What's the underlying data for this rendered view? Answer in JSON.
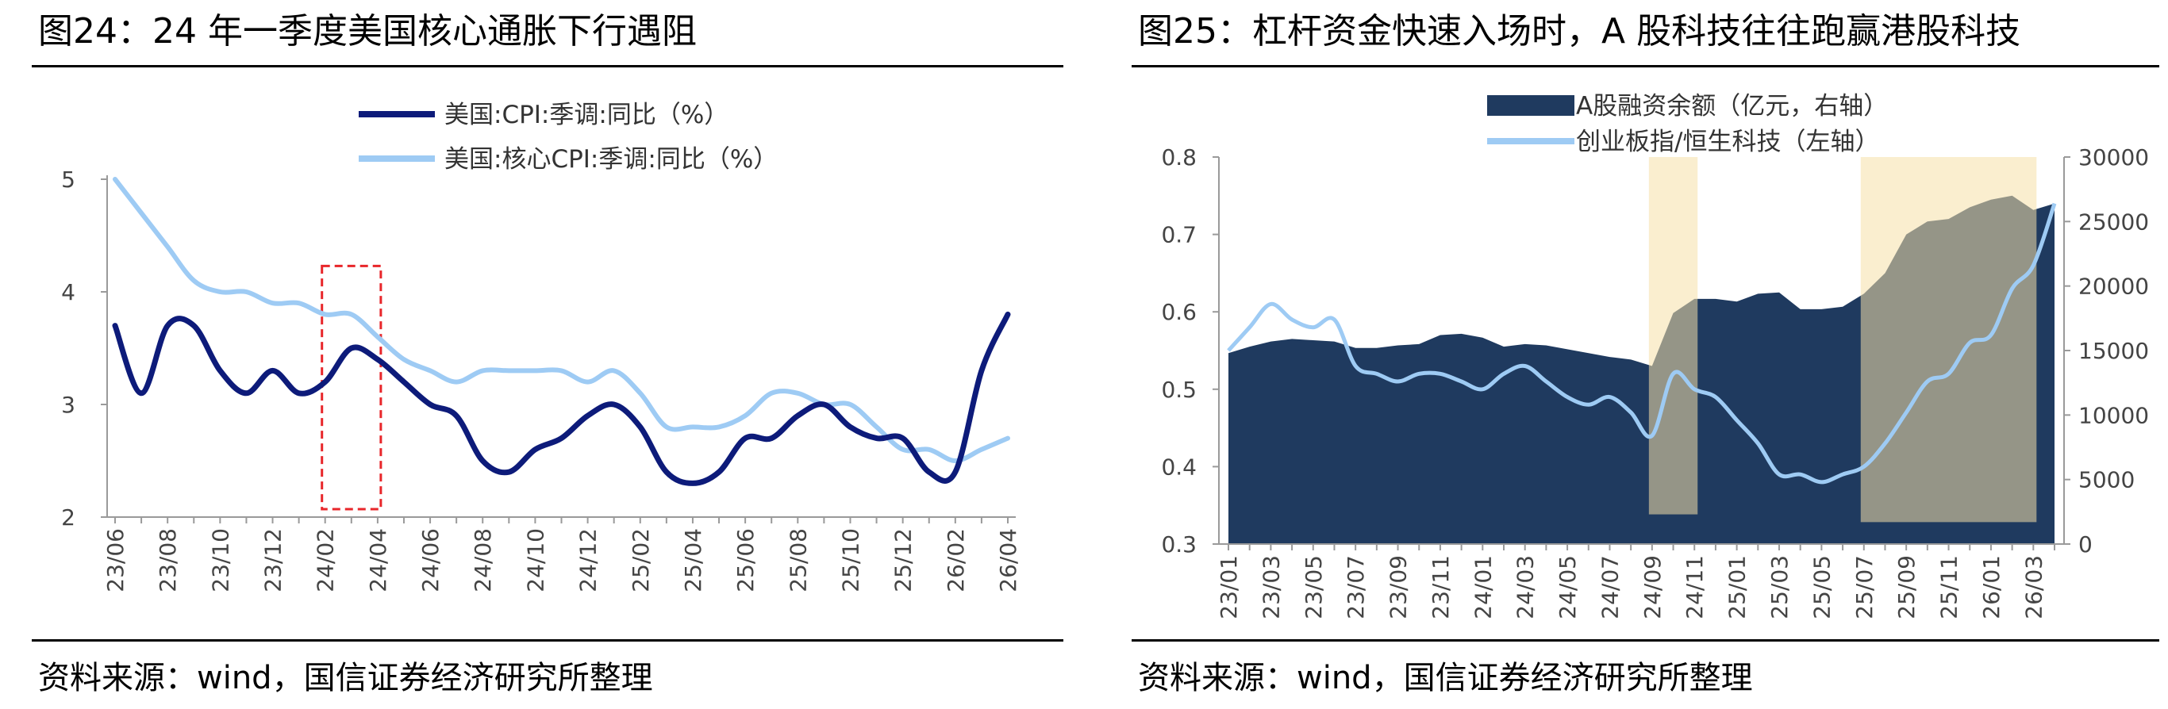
{
  "left": {
    "title": "图24：24 年一季度美国核心通胀下行遇阻",
    "source": "资料来源：wind，国信证券经济研究所整理",
    "chart_data": {
      "type": "line",
      "x": [
        "23/06",
        "23/07",
        "23/08",
        "23/09",
        "23/10",
        "23/11",
        "23/12",
        "24/01",
        "24/02",
        "24/03",
        "24/04",
        "24/05",
        "24/06",
        "24/07",
        "24/08",
        "24/09",
        "24/10",
        "24/11",
        "24/12",
        "25/01",
        "25/02",
        "25/03",
        "25/04",
        "25/05",
        "25/06",
        "25/07",
        "25/08",
        "25/09",
        "25/10",
        "25/11",
        "25/12",
        "26/01",
        "26/02",
        "26/03",
        "26/04"
      ],
      "x_ticks": [
        "23/06",
        "23/08",
        "23/10",
        "23/12",
        "24/02",
        "24/04",
        "24/06",
        "24/08",
        "24/10",
        "24/12",
        "25/02",
        "25/04",
        "25/06",
        "25/08",
        "25/10",
        "25/12",
        "26/02",
        "26/04"
      ],
      "y_ticks": [
        "2",
        "3",
        "4",
        "5"
      ],
      "ylim": [
        2,
        5
      ],
      "series": [
        {
          "name": "美国:CPI:季调:同比（%）",
          "color": "#0d1b7a",
          "values": [
            3.7,
            3.1,
            3.7,
            3.7,
            3.3,
            3.1,
            3.3,
            3.1,
            3.2,
            3.5,
            3.4,
            3.2,
            3.0,
            2.9,
            2.5,
            2.4,
            2.6,
            2.7,
            2.9,
            3.0,
            2.8,
            2.4,
            2.3,
            2.4,
            2.7,
            2.7,
            2.9,
            3.0,
            2.8,
            2.7,
            2.7,
            2.4,
            2.4,
            3.3,
            3.8
          ]
        },
        {
          "name": "美国:核心CPI:季调:同比（%）",
          "color": "#9ecbf4",
          "values": [
            5.0,
            4.7,
            4.4,
            4.1,
            4.0,
            4.0,
            3.9,
            3.9,
            3.8,
            3.8,
            3.6,
            3.4,
            3.3,
            3.2,
            3.3,
            3.3,
            3.3,
            3.3,
            3.2,
            3.3,
            3.1,
            2.8,
            2.8,
            2.8,
            2.9,
            3.1,
            3.1,
            3.0,
            3.0,
            2.8,
            2.6,
            2.6,
            2.5,
            2.6,
            2.7
          ]
        }
      ],
      "annotation": {
        "type": "dashed-box",
        "color": "#e8262a",
        "x_from": "24/02",
        "x_to": "24/04"
      }
    }
  },
  "right": {
    "title": "图25：杠杆资金快速入场时，A 股科技往往跑赢港股科技",
    "source": "资料来源：wind，国信证券经济研究所整理",
    "chart_data": {
      "type": "area",
      "x": [
        "23/01",
        "23/02",
        "23/03",
        "23/04",
        "23/05",
        "23/06",
        "23/07",
        "23/08",
        "23/09",
        "23/10",
        "23/11",
        "23/12",
        "24/01",
        "24/02",
        "24/03",
        "24/04",
        "24/05",
        "24/06",
        "24/07",
        "24/08",
        "24/09",
        "24/10",
        "24/11",
        "24/12",
        "25/01",
        "25/02",
        "25/03",
        "25/04",
        "25/05",
        "25/06",
        "25/07",
        "25/08",
        "25/09",
        "25/10",
        "25/11",
        "25/12",
        "26/01",
        "26/02",
        "26/03",
        "26/04"
      ],
      "x_ticks": [
        "23/01",
        "23/03",
        "23/05",
        "23/07",
        "23/09",
        "23/11",
        "24/01",
        "24/03",
        "24/05",
        "24/07",
        "24/09",
        "24/11",
        "25/01",
        "25/03",
        "25/05",
        "25/07",
        "25/09",
        "25/11",
        "26/01",
        "26/03"
      ],
      "left_axis": {
        "ticks": [
          "0.3",
          "0.4",
          "0.5",
          "0.6",
          "0.7",
          "0.8"
        ],
        "range": [
          0.3,
          0.8
        ]
      },
      "right_axis": {
        "ticks": [
          "0",
          "5000",
          "10000",
          "15000",
          "20000",
          "25000",
          "30000"
        ],
        "range": [
          0,
          30000
        ]
      },
      "series": [
        {
          "name": "A股融资余额（亿元，右轴）",
          "axis": "right",
          "color": "#1f3a5f",
          "values": [
            14800,
            15300,
            15700,
            15900,
            15800,
            15700,
            15200,
            15200,
            15400,
            15500,
            16200,
            16300,
            16000,
            15300,
            15500,
            15400,
            15100,
            14800,
            14500,
            14300,
            13800,
            17900,
            19000,
            19000,
            18800,
            19400,
            19500,
            18200,
            18200,
            18400,
            19400,
            21000,
            24000,
            25000,
            25200,
            26100,
            26700,
            27000,
            25900,
            26400
          ]
        },
        {
          "name": "创业板指/恒生科技（左轴）",
          "axis": "left",
          "color": "#9ecbf4",
          "values": [
            0.55,
            0.58,
            0.61,
            0.59,
            0.58,
            0.59,
            0.53,
            0.52,
            0.51,
            0.52,
            0.52,
            0.51,
            0.5,
            0.52,
            0.53,
            0.51,
            0.49,
            0.48,
            0.49,
            0.47,
            0.44,
            0.52,
            0.5,
            0.49,
            0.46,
            0.43,
            0.39,
            0.39,
            0.38,
            0.39,
            0.4,
            0.43,
            0.47,
            0.51,
            0.52,
            0.56,
            0.57,
            0.63,
            0.66,
            0.74
          ]
        }
      ],
      "highlight_periods": [
        {
          "from": "24/09",
          "to": "24/11",
          "color": "#f5e0a8"
        },
        {
          "from": "25/07",
          "to": "26/03",
          "color": "#f5e0a8"
        }
      ]
    }
  }
}
